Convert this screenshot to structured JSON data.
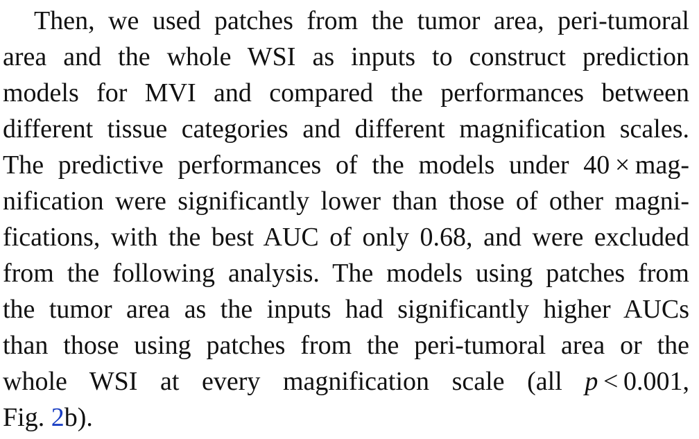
{
  "paragraph": {
    "lines": [
      "Then, we used patches from the tumor area, peri-tumoral",
      "area and the whole WSI as inputs to construct prediction",
      "models for MVI and compared the performances between",
      "different tissue categories and different magnification scales.",
      "The predictive performances of the models under 40 × mag-",
      "nification were significantly lower than those of other magni-",
      "fications, with the best AUC of only 0.68, and were excluded",
      "from the following analysis. The models using patches from",
      "the tumor area as the inputs had significantly higher AUCs",
      "than those using patches from the peri-tumoral area or the"
    ],
    "line11_pre": "whole WSI at every magnification scale (all ",
    "line11_p": "p",
    "line11_post": " < 0.001,",
    "line12_pre": "Fig. ",
    "line12_ref": "2",
    "line12_post": "b)."
  },
  "colors": {
    "text": "#111111",
    "link": "#1a3fc4"
  }
}
